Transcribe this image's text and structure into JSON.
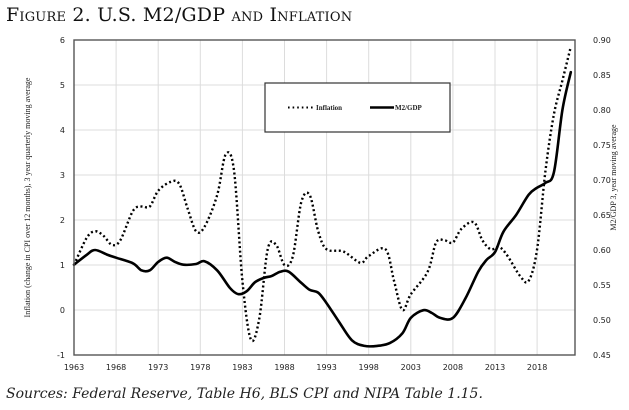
{
  "figure": {
    "title": "Figure 2. U.S. M2/GDP and Inflation",
    "source": "Sources: Federal Reserve, Table H6, BLS CPI and NIPA Table 1.15."
  },
  "chart_data": {
    "type": "line",
    "title": "Figure 2. U.S. M2/GDP and Inflation",
    "xlabel": "",
    "ylabel": "Inflation (change in CPI over 12 months), 3 year quarterly moving average",
    "y2label": "M2/GDP 3, year moving average",
    "xlim": [
      1963,
      2022.5
    ],
    "ylim": [
      -1,
      6
    ],
    "y2lim": [
      0.45,
      0.9
    ],
    "x_ticks": [
      "1963",
      "1968",
      "1973",
      "1978",
      "1983",
      "1988",
      "1993",
      "1998",
      "2003",
      "2008",
      "2013",
      "2018"
    ],
    "y_ticks": [
      "-1",
      "0",
      "1",
      "2",
      "3",
      "4",
      "5",
      "6"
    ],
    "y2_ticks": [
      "0.45",
      "0.50",
      "0.55",
      "0.60",
      "0.65",
      "0.70",
      "0.75",
      "0.80",
      "0.85",
      "0.90"
    ],
    "grid": true,
    "legend_position": "top-center",
    "series": [
      {
        "name": "Inflation",
        "axis": "left",
        "style": "dotted",
        "x": [
          1963,
          1964.5,
          1965.5,
          1966.5,
          1967.5,
          1968.5,
          1970,
          1971,
          1972,
          1973,
          1974.5,
          1975.5,
          1976.5,
          1977.5,
          1978.5,
          1980,
          1981,
          1982,
          1983,
          1984,
          1985,
          1986,
          1987,
          1988,
          1989,
          1990,
          1991,
          1992,
          1993,
          1995,
          1997,
          1998,
          2000,
          2001,
          2002,
          2003,
          2005,
          2006,
          2007,
          2008,
          2009,
          2010.5,
          2011.5,
          2012.5,
          2013.5,
          2014.5,
          2016,
          2017,
          2018,
          2019,
          2020,
          2021,
          2022
        ],
        "values": [
          1.0,
          1.6,
          1.75,
          1.65,
          1.45,
          1.55,
          2.2,
          2.3,
          2.3,
          2.65,
          2.85,
          2.8,
          2.25,
          1.75,
          1.85,
          2.55,
          3.45,
          3.1,
          0.65,
          -0.65,
          -0.2,
          1.35,
          1.45,
          1.0,
          1.2,
          2.4,
          2.55,
          1.75,
          1.35,
          1.3,
          1.05,
          1.2,
          1.35,
          0.65,
          0.0,
          0.35,
          0.85,
          1.5,
          1.55,
          1.5,
          1.8,
          1.95,
          1.55,
          1.35,
          1.4,
          1.2,
          0.75,
          0.65,
          1.35,
          3.1,
          4.35,
          5.1,
          5.85
        ]
      },
      {
        "name": "M2/GDP",
        "axis": "right",
        "style": "solid",
        "x": [
          1963,
          1964.5,
          1965.5,
          1967,
          1968,
          1970,
          1971,
          1972,
          1973,
          1974,
          1975,
          1976,
          1977.5,
          1978.5,
          1980,
          1981.5,
          1982.5,
          1983.5,
          1984.5,
          1985.5,
          1986.5,
          1987.5,
          1988.5,
          1990,
          1991,
          1992,
          1993,
          1994.5,
          1996,
          1997.5,
          1999,
          2000.5,
          2002,
          2003,
          2004.5,
          2005.5,
          2006.5,
          2008,
          2009.5,
          2011,
          2012,
          2013,
          2014,
          2015.5,
          2017,
          2018,
          2019,
          2020,
          2021,
          2022
        ],
        "values": [
          0.579,
          0.593,
          0.6,
          0.593,
          0.589,
          0.581,
          0.571,
          0.571,
          0.583,
          0.589,
          0.583,
          0.579,
          0.58,
          0.584,
          0.571,
          0.546,
          0.537,
          0.541,
          0.554,
          0.56,
          0.563,
          0.569,
          0.569,
          0.553,
          0.543,
          0.539,
          0.524,
          0.497,
          0.471,
          0.463,
          0.463,
          0.467,
          0.481,
          0.503,
          0.514,
          0.51,
          0.503,
          0.503,
          0.531,
          0.569,
          0.586,
          0.597,
          0.626,
          0.65,
          0.679,
          0.689,
          0.696,
          0.711,
          0.8,
          0.854
        ]
      }
    ]
  },
  "colors": {
    "line": "#000000",
    "grid": "#dcdcdc",
    "frame": "#555555",
    "legend_border": "#333333"
  }
}
